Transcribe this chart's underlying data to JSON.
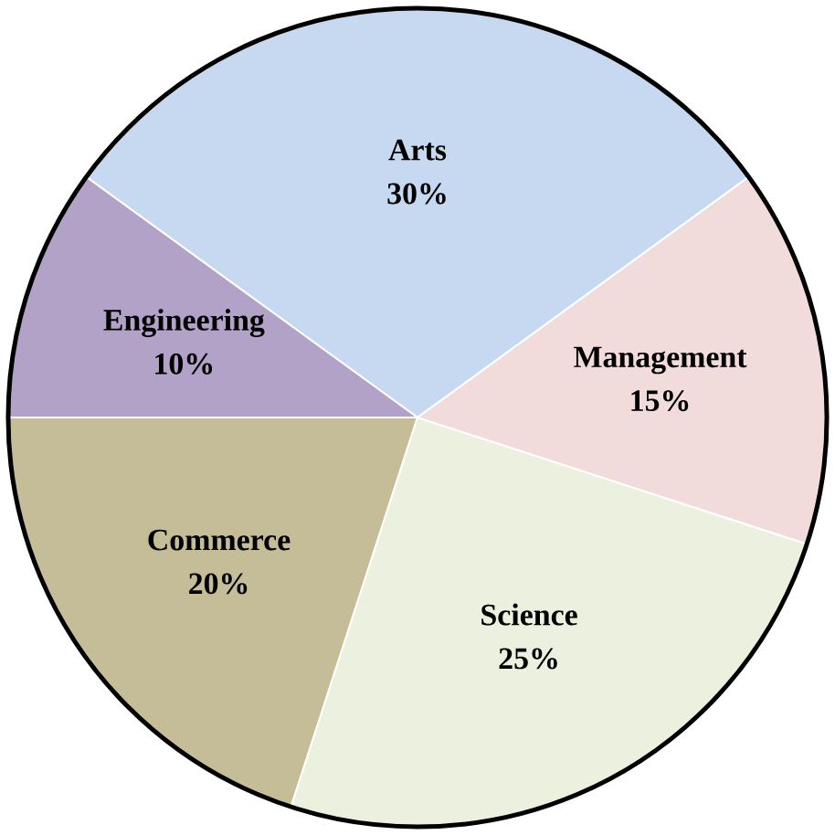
{
  "chart_data": {
    "type": "pie",
    "categories": [
      "Arts",
      "Engineering",
      "Commerce",
      "Science",
      "Management"
    ],
    "values": [
      30,
      10,
      20,
      25,
      15
    ],
    "value_labels": [
      "30%",
      "10%",
      "20%",
      "25%",
      "15%"
    ],
    "colors": [
      "#c6d9f0",
      "#b2a2c7",
      "#c4bd97",
      "#ebf1de",
      "#f2dcdb"
    ],
    "data_labels": true
  }
}
